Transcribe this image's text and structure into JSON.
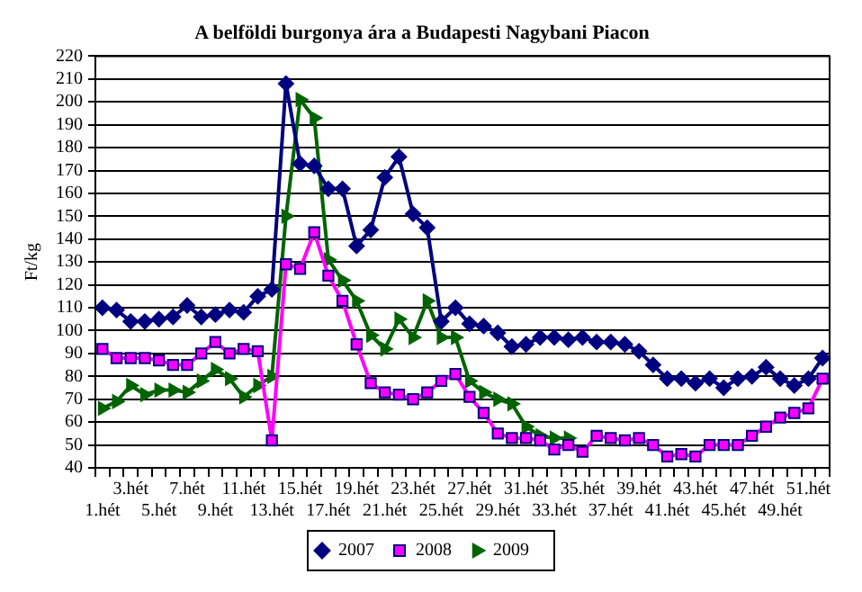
{
  "chart_data": {
    "type": "line",
    "title": "A belföldi burgonya ára a Budapesti Nagybani Piacon",
    "ylabel": "Ft/kg",
    "categories": [
      "1.hét",
      null,
      "3.hét",
      null,
      "5.hét",
      null,
      "7.hét",
      null,
      "9.hét",
      null,
      "11.hét",
      null,
      "13.hét",
      null,
      "15.hét",
      null,
      "17.hét",
      null,
      "19.hét",
      null,
      "21.hét",
      null,
      "23.hét",
      null,
      "25.hét",
      null,
      "27.hét",
      null,
      "29.hét",
      null,
      "31.hét",
      null,
      "33.hét",
      null,
      "35.hét",
      null,
      "37.hét",
      null,
      "39.hét",
      null,
      "41.hét",
      null,
      "43.hét",
      null,
      "45.hét",
      null,
      "47.hét",
      null,
      "49.hét",
      null,
      "51.hét",
      null
    ],
    "series": [
      {
        "name": "2007",
        "color": "#000080",
        "marker": "diamond",
        "values": [
          110,
          109,
          104,
          104,
          105,
          106,
          111,
          106,
          107,
          109,
          108,
          115,
          118,
          208,
          173,
          172,
          162,
          162,
          137,
          144,
          167,
          176,
          151,
          145,
          104,
          110,
          103,
          102,
          99,
          93,
          94,
          97,
          97,
          96,
          97,
          95,
          95,
          94,
          91,
          85,
          79,
          79,
          77,
          79,
          75,
          79,
          80,
          84,
          79,
          76,
          79,
          88
        ]
      },
      {
        "name": "2008",
        "color": "#ff00ff",
        "marker": "square",
        "values": [
          92,
          88,
          88,
          88,
          87,
          85,
          85,
          90,
          95,
          90,
          92,
          91,
          52,
          129,
          127,
          143,
          124,
          113,
          94,
          77,
          73,
          72,
          70,
          73,
          78,
          81,
          71,
          64,
          55,
          53,
          53,
          52,
          48,
          50,
          47,
          54,
          53,
          52,
          53,
          50,
          45,
          46,
          45,
          50,
          50,
          50,
          54,
          58,
          62,
          64,
          66,
          79
        ]
      },
      {
        "name": "2009",
        "color": "#006400",
        "marker": "triangle",
        "values": [
          66,
          69,
          76,
          72,
          74,
          74,
          73,
          78,
          83,
          79,
          71,
          76,
          80,
          150,
          201,
          193,
          131,
          122,
          113,
          98,
          92,
          105,
          97,
          113,
          97,
          97,
          78,
          73,
          70,
          68,
          58,
          54,
          53,
          53,
          null,
          null,
          null,
          null,
          null,
          null,
          null,
          null,
          null,
          null,
          null,
          null,
          null,
          null,
          null,
          null,
          null,
          null
        ]
      }
    ],
    "ylim": [
      40,
      220
    ],
    "yticks": [
      40,
      50,
      60,
      70,
      80,
      90,
      100,
      110,
      120,
      130,
      140,
      150,
      160,
      170,
      180,
      190,
      200,
      210,
      220
    ],
    "grid": "y",
    "legend": "bottom"
  }
}
